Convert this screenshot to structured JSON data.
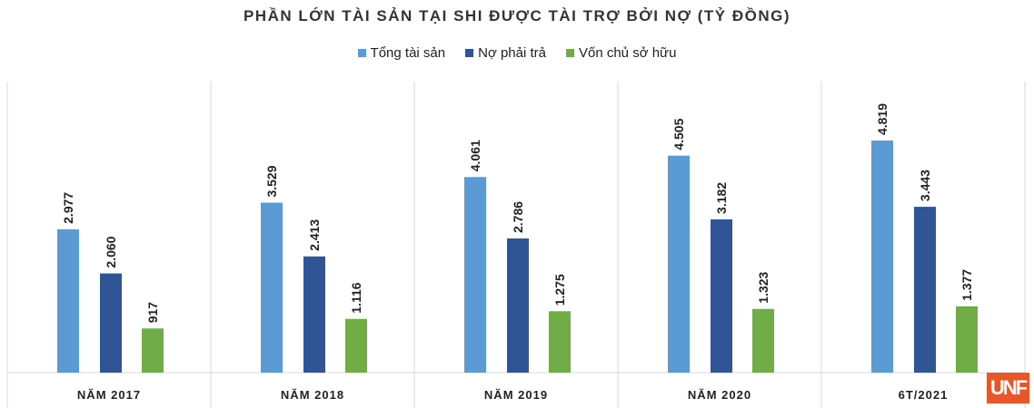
{
  "chart_data": {
    "type": "bar",
    "title": "PHẦN LỚN TÀI SẢN TẠI SHI ĐƯỢC TÀI TRỢ BỞI NỢ (TỶ ĐỒNG)",
    "categories": [
      "NĂM 2017",
      "NĂM 2018",
      "NĂM 2019",
      "NĂM 2020",
      "6T/2021"
    ],
    "series": [
      {
        "name": "Tổng tài sản",
        "color": "#5b9bd5",
        "values": [
          2977,
          3529,
          4061,
          4505,
          4819
        ],
        "labels": [
          "2.977",
          "3.529",
          "4.061",
          "4.505",
          "4.819"
        ]
      },
      {
        "name": "Nợ phải trả",
        "color": "#2f5597",
        "values": [
          2060,
          2413,
          2786,
          3182,
          3443
        ],
        "labels": [
          "2.060",
          "2.413",
          "2.786",
          "3.182",
          "3.443"
        ]
      },
      {
        "name": "Vốn chủ sở hữu",
        "color": "#70ad47",
        "values": [
          917,
          1116,
          1275,
          1323,
          1377
        ],
        "labels": [
          "917",
          "1.116",
          "1.275",
          "1.323",
          "1.377"
        ]
      }
    ],
    "ylim": [
      0,
      4819
    ],
    "grid": false,
    "legend": "top",
    "xlabel": "",
    "ylabel": ""
  },
  "logo": {
    "text": "UNF",
    "color": "#e8572a"
  }
}
